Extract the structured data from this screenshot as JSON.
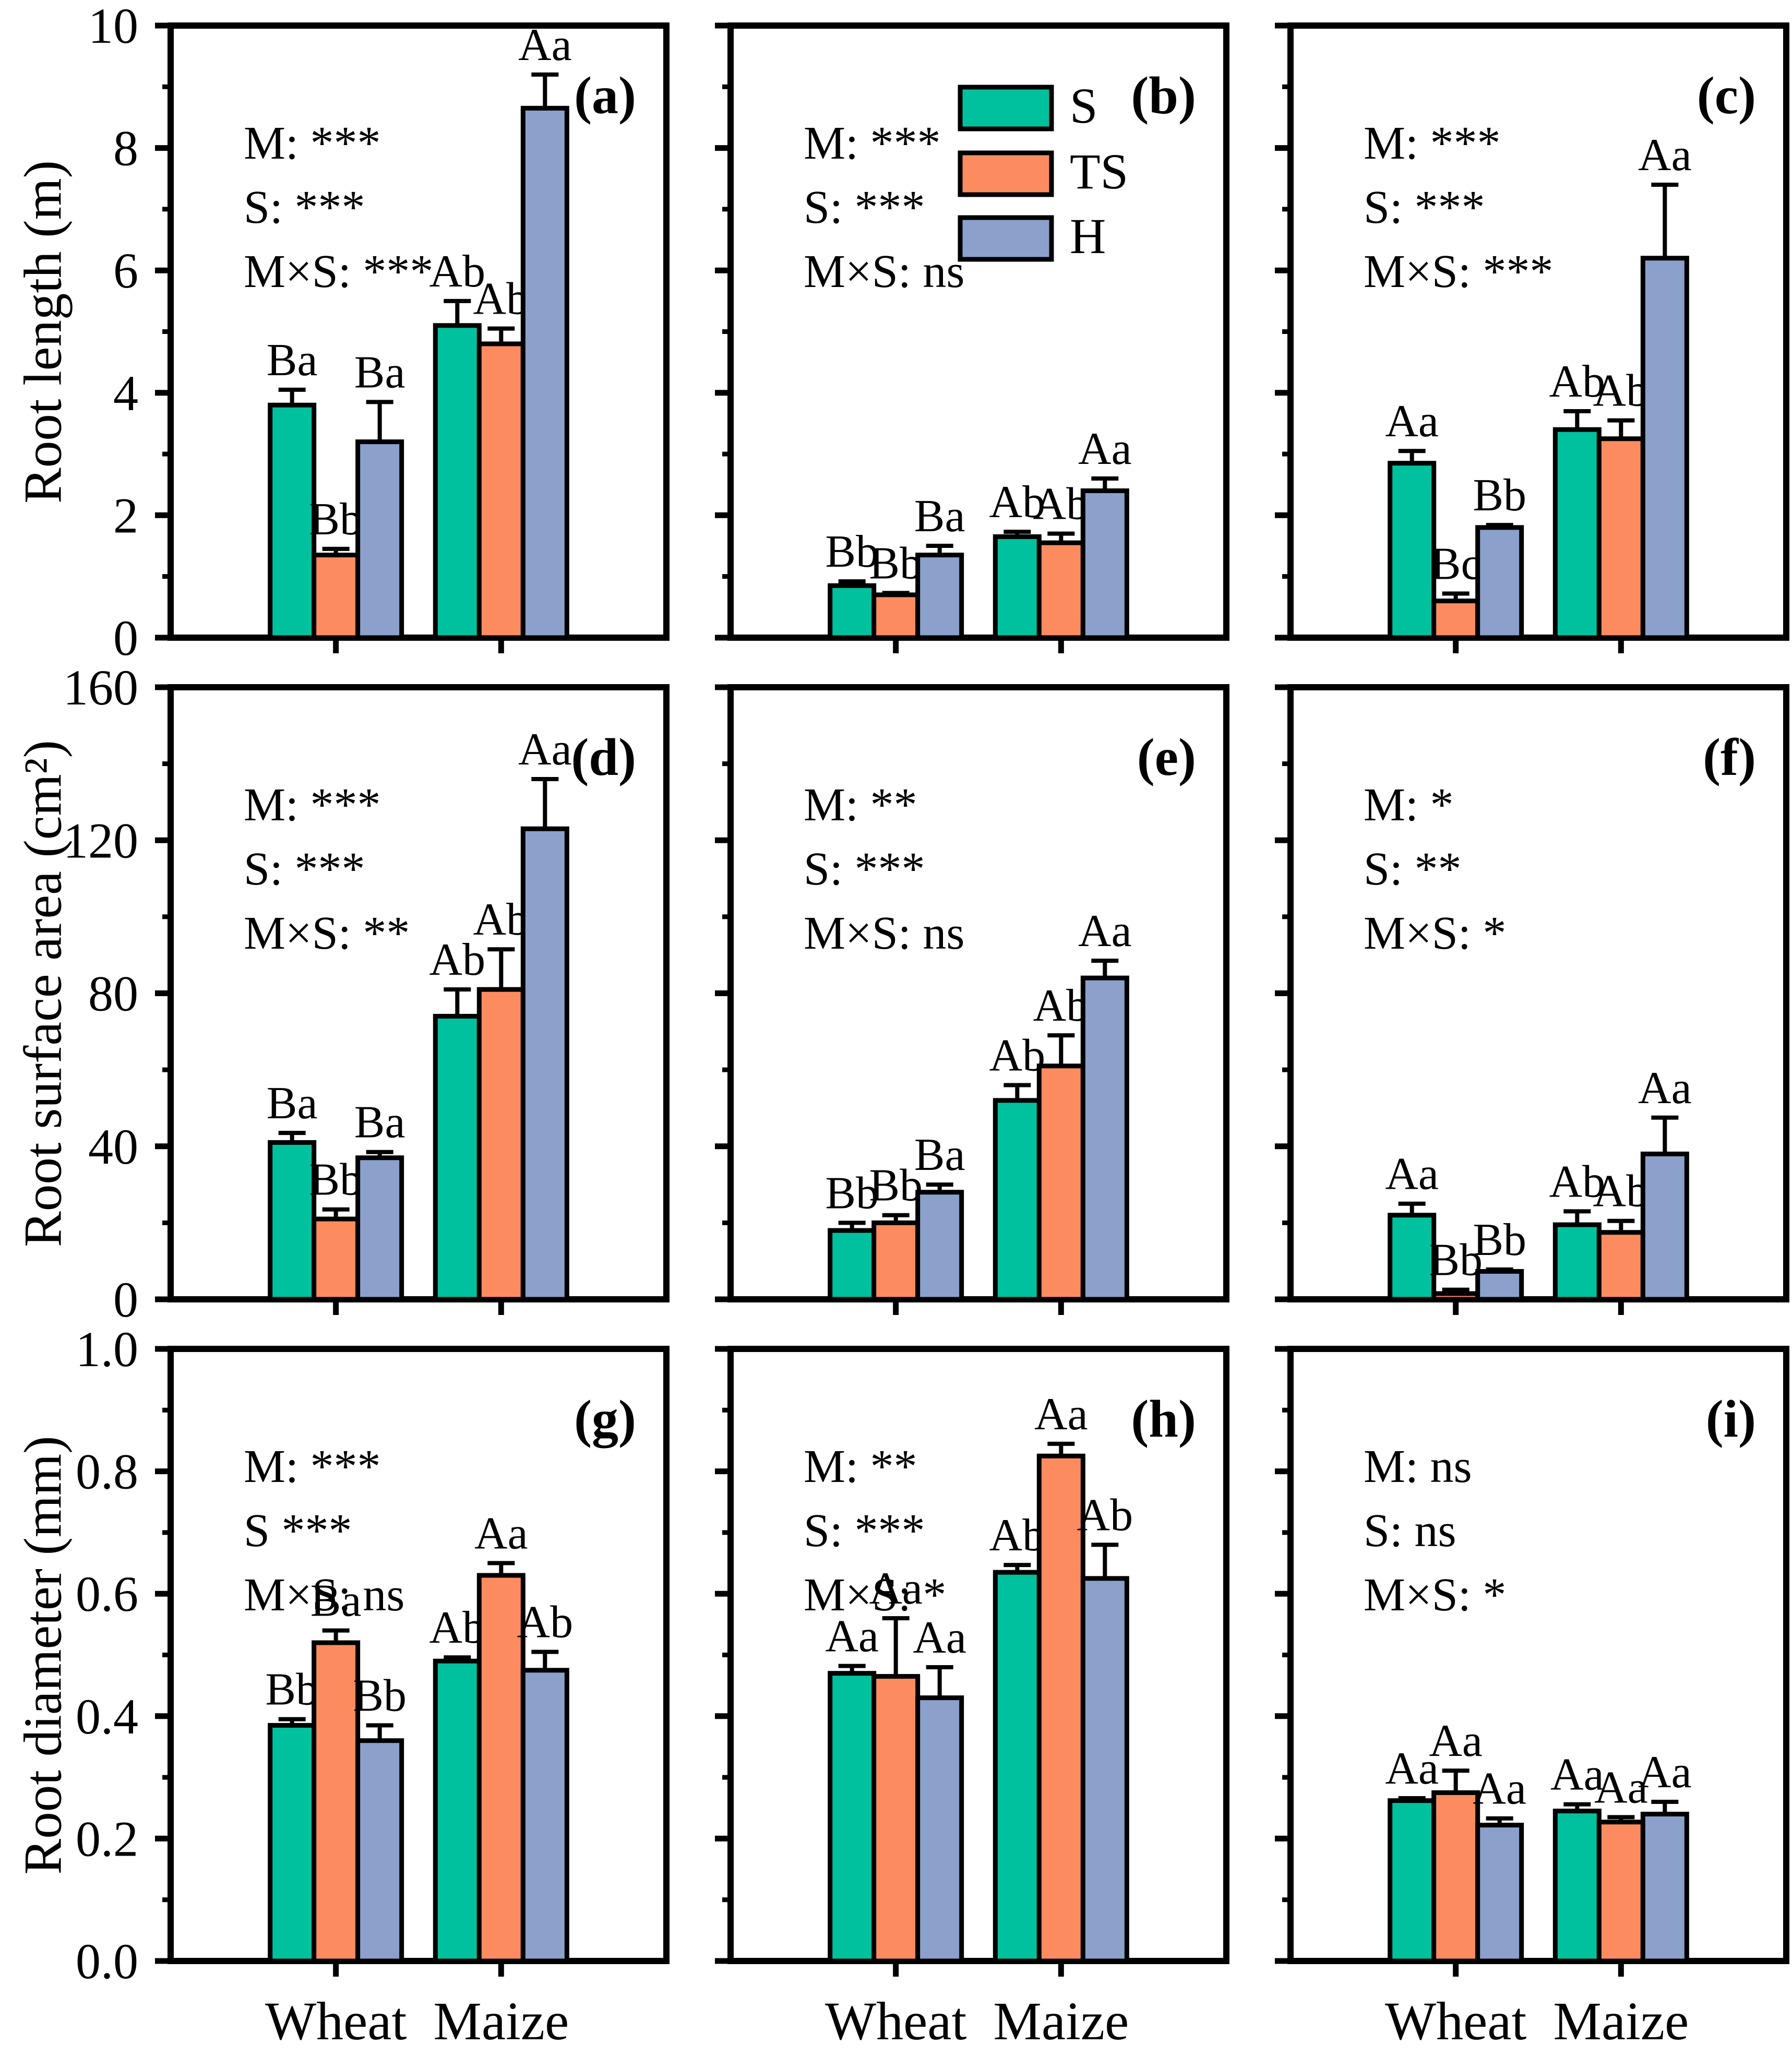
{
  "figure": {
    "background": "#ffffff",
    "ink_color": "#000000",
    "series_colors": {
      "S": "#00C19D",
      "TS": "#FC8C5F",
      "H": "#8CA0CC"
    },
    "legend": {
      "entries": [
        "S",
        "TS",
        "H"
      ],
      "location": "panel-b-top-center"
    },
    "rows": [
      {
        "ylabel": "Root length (m)"
      },
      {
        "ylabel": "Root surface area (cm²)"
      },
      {
        "ylabel": "Root diameter (mm)"
      }
    ],
    "x_category_labels": [
      "Wheat",
      "Maize"
    ]
  },
  "chart_data": [
    {
      "panel_letter": "(a)",
      "type": "bar",
      "row": 0,
      "col": 0,
      "ylabel": "Root length (m)",
      "ylim": [
        0,
        10
      ],
      "major_tick": 2,
      "minor_tick": 1,
      "tick_decimals": 0,
      "stats_lines": [
        "M: ***",
        "S: ***",
        "M×S: ***"
      ],
      "categories": [
        "Wheat",
        "Maize"
      ],
      "show_legend": false,
      "series": [
        {
          "name": "S",
          "values": [
            3.8,
            5.1
          ],
          "errors": [
            0.25,
            0.4
          ],
          "letters": [
            "Ba",
            "Ab"
          ]
        },
        {
          "name": "TS",
          "values": [
            1.35,
            4.8
          ],
          "errors": [
            0.1,
            0.25
          ],
          "letters": [
            "Bb",
            "Ab"
          ]
        },
        {
          "name": "H",
          "values": [
            3.2,
            8.65
          ],
          "errors": [
            0.65,
            0.55
          ],
          "letters": [
            "Ba",
            "Aa"
          ]
        }
      ]
    },
    {
      "panel_letter": "(b)",
      "type": "bar",
      "row": 0,
      "col": 1,
      "ylabel": "Root length (m)",
      "ylim": [
        0,
        10
      ],
      "major_tick": 2,
      "minor_tick": 1,
      "tick_decimals": 0,
      "stats_lines": [
        "M: ***",
        "S: ***",
        "M×S: ns"
      ],
      "categories": [
        "Wheat",
        "Maize"
      ],
      "show_legend": true,
      "series": [
        {
          "name": "S",
          "values": [
            0.85,
            1.65
          ],
          "errors": [
            0.07,
            0.08
          ],
          "letters": [
            "Bb",
            "Ab"
          ]
        },
        {
          "name": "TS",
          "values": [
            0.7,
            1.55
          ],
          "errors": [
            0.03,
            0.15
          ],
          "letters": [
            "Bb",
            "Ab"
          ]
        },
        {
          "name": "H",
          "values": [
            1.35,
            2.4
          ],
          "errors": [
            0.15,
            0.2
          ],
          "letters": [
            "Ba",
            "Aa"
          ]
        }
      ]
    },
    {
      "panel_letter": "(c)",
      "type": "bar",
      "row": 0,
      "col": 2,
      "ylabel": "Root length (m)",
      "ylim": [
        0,
        10
      ],
      "major_tick": 2,
      "minor_tick": 1,
      "tick_decimals": 0,
      "stats_lines": [
        "M: ***",
        "S: ***",
        "M×S: ***"
      ],
      "categories": [
        "Wheat",
        "Maize"
      ],
      "show_legend": false,
      "series": [
        {
          "name": "S",
          "values": [
            2.85,
            3.4
          ],
          "errors": [
            0.2,
            0.3
          ],
          "letters": [
            "Aa",
            "Ab"
          ]
        },
        {
          "name": "TS",
          "values": [
            0.6,
            3.25
          ],
          "errors": [
            0.12,
            0.3
          ],
          "letters": [
            "Bc",
            "Ab"
          ]
        },
        {
          "name": "H",
          "values": [
            1.8,
            6.2
          ],
          "errors": [
            0.04,
            1.2
          ],
          "letters": [
            "Bb",
            "Aa"
          ]
        }
      ]
    },
    {
      "panel_letter": "(d)",
      "type": "bar",
      "row": 1,
      "col": 0,
      "ylabel": "Root surface area (cm²)",
      "ylim": [
        0,
        160
      ],
      "major_tick": 40,
      "minor_tick": 20,
      "tick_decimals": 0,
      "stats_lines": [
        "M: ***",
        "S: ***",
        "M×S: **"
      ],
      "categories": [
        "Wheat",
        "Maize"
      ],
      "show_legend": false,
      "series": [
        {
          "name": "S",
          "values": [
            41,
            74
          ],
          "errors": [
            2.5,
            7
          ],
          "letters": [
            "Ba",
            "Ab"
          ]
        },
        {
          "name": "TS",
          "values": [
            21,
            81
          ],
          "errors": [
            2.5,
            10.5
          ],
          "letters": [
            "Bb",
            "Ab"
          ]
        },
        {
          "name": "H",
          "values": [
            37,
            123
          ],
          "errors": [
            1.5,
            13
          ],
          "letters": [
            "Ba",
            "Aa"
          ]
        }
      ]
    },
    {
      "panel_letter": "(e)",
      "type": "bar",
      "row": 1,
      "col": 1,
      "ylabel": "Root surface area (cm²)",
      "ylim": [
        0,
        160
      ],
      "major_tick": 40,
      "minor_tick": 20,
      "tick_decimals": 0,
      "stats_lines": [
        "M: **",
        "S: ***",
        "M×S: ns"
      ],
      "categories": [
        "Wheat",
        "Maize"
      ],
      "show_legend": false,
      "series": [
        {
          "name": "S",
          "values": [
            18,
            52
          ],
          "errors": [
            2,
            4
          ],
          "letters": [
            "Bb",
            "Ab"
          ]
        },
        {
          "name": "TS",
          "values": [
            20,
            61
          ],
          "errors": [
            2,
            8
          ],
          "letters": [
            "Bb",
            "Ab"
          ]
        },
        {
          "name": "H",
          "values": [
            28,
            84
          ],
          "errors": [
            2,
            4.5
          ],
          "letters": [
            "Ba",
            "Aa"
          ]
        }
      ]
    },
    {
      "panel_letter": "(f)",
      "type": "bar",
      "row": 1,
      "col": 2,
      "ylabel": "Root surface area (cm²)",
      "ylim": [
        0,
        160
      ],
      "major_tick": 40,
      "minor_tick": 20,
      "tick_decimals": 0,
      "stats_lines": [
        "M: *",
        "S: **",
        "M×S: *"
      ],
      "categories": [
        "Wheat",
        "Maize"
      ],
      "show_legend": false,
      "series": [
        {
          "name": "S",
          "values": [
            22,
            19.5
          ],
          "errors": [
            3,
            3.5
          ],
          "letters": [
            "Aa",
            "Ab"
          ]
        },
        {
          "name": "TS",
          "values": [
            1.5,
            17.5
          ],
          "errors": [
            1,
            3
          ],
          "letters": [
            "Bb",
            "Ab"
          ]
        },
        {
          "name": "H",
          "values": [
            7.3,
            38
          ],
          "errors": [
            0.5,
            9.5
          ],
          "letters": [
            "Bb",
            "Aa"
          ]
        }
      ]
    },
    {
      "panel_letter": "(g)",
      "type": "bar",
      "row": 2,
      "col": 0,
      "ylabel": "Root diameter (mm)",
      "ylim": [
        0,
        1.0
      ],
      "major_tick": 0.2,
      "minor_tick": 0.1,
      "tick_decimals": 1,
      "stats_lines": [
        "M: ***",
        "S ***",
        "M×S: ns"
      ],
      "categories": [
        "Wheat",
        "Maize"
      ],
      "show_legend": false,
      "series": [
        {
          "name": "S",
          "values": [
            0.385,
            0.49
          ],
          "errors": [
            0.01,
            0.006
          ],
          "letters": [
            "Bb",
            "Ab"
          ]
        },
        {
          "name": "TS",
          "values": [
            0.52,
            0.63
          ],
          "errors": [
            0.02,
            0.02
          ],
          "letters": [
            "Ba",
            "Aa"
          ]
        },
        {
          "name": "H",
          "values": [
            0.36,
            0.475
          ],
          "errors": [
            0.025,
            0.03
          ],
          "letters": [
            "Bb",
            "Ab"
          ]
        }
      ]
    },
    {
      "panel_letter": "(h)",
      "type": "bar",
      "row": 2,
      "col": 1,
      "ylabel": "Root diameter (mm)",
      "ylim": [
        0,
        1.0
      ],
      "major_tick": 0.2,
      "minor_tick": 0.1,
      "tick_decimals": 1,
      "stats_lines": [
        "M: **",
        "S: ***",
        "M×S: *"
      ],
      "categories": [
        "Wheat",
        "Maize"
      ],
      "show_legend": false,
      "series": [
        {
          "name": "S",
          "values": [
            0.47,
            0.635
          ],
          "errors": [
            0.012,
            0.012
          ],
          "letters": [
            "Aa",
            "Ab"
          ]
        },
        {
          "name": "TS",
          "values": [
            0.465,
            0.825
          ],
          "errors": [
            0.095,
            0.02
          ],
          "letters": [
            "Aa",
            "Aa"
          ]
        },
        {
          "name": "H",
          "values": [
            0.43,
            0.625
          ],
          "errors": [
            0.05,
            0.055
          ],
          "letters": [
            "Aa",
            "Ab"
          ]
        }
      ]
    },
    {
      "panel_letter": "(i)",
      "type": "bar",
      "row": 2,
      "col": 2,
      "ylabel": "Root diameter (mm)",
      "ylim": [
        0,
        1.0
      ],
      "major_tick": 0.2,
      "minor_tick": 0.1,
      "tick_decimals": 1,
      "stats_lines": [
        "M: ns",
        "S: ns",
        "M×S: *"
      ],
      "categories": [
        "Wheat",
        "Maize"
      ],
      "show_legend": false,
      "series": [
        {
          "name": "S",
          "values": [
            0.262,
            0.245
          ],
          "errors": [
            0.004,
            0.011
          ],
          "letters": [
            "Aa",
            "Aa"
          ]
        },
        {
          "name": "TS",
          "values": [
            0.275,
            0.227
          ],
          "errors": [
            0.036,
            0.008
          ],
          "letters": [
            "Aa",
            "Aa"
          ]
        },
        {
          "name": "H",
          "values": [
            0.222,
            0.24
          ],
          "errors": [
            0.011,
            0.02
          ],
          "letters": [
            "Aa",
            "Aa"
          ]
        }
      ]
    }
  ]
}
